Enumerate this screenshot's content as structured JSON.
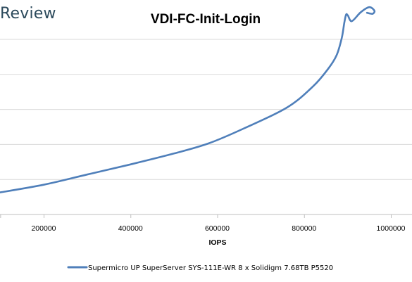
{
  "brand": "Review",
  "colors": {
    "series": "#4f7fba",
    "grid": "#d9d9d9",
    "axis": "#bfbfbf",
    "brand": "#2c4a5c"
  },
  "chart_data": {
    "type": "line",
    "title": "VDI-FC-Init-Login",
    "xlabel": "IOPS",
    "ylabel": "",
    "xlim": [
      100000,
      1000000
    ],
    "xticks": [
      200000,
      400000,
      600000,
      800000,
      1000000
    ],
    "xtick_labels": [
      "200000",
      "400000",
      "600000",
      "800000",
      "1000000"
    ],
    "grid": true,
    "legend_position": "bottom",
    "series": [
      {
        "name": "Supermicro UP SuperServer SYS-111E-WR 8 x Solidigm 7.68TB P5520",
        "x": [
          90000,
          200000,
          300000,
          400000,
          500000,
          580000,
          660000,
          760000,
          820000,
          855000,
          875000,
          887000,
          893000,
          897000,
          901000,
          910000,
          930000,
          950000,
          962000,
          958000,
          945000
        ],
        "y": [
          0.61,
          0.85,
          1.14,
          1.43,
          1.74,
          2.03,
          2.45,
          3.05,
          3.65,
          4.15,
          4.55,
          5.05,
          5.5,
          5.71,
          5.68,
          5.52,
          5.77,
          5.92,
          5.82,
          5.73,
          5.76
        ]
      }
    ]
  }
}
